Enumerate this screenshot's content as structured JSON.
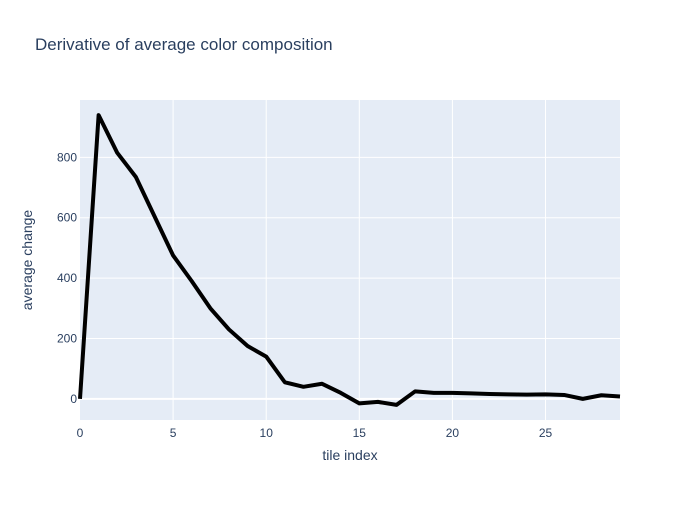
{
  "chart_data": {
    "type": "line",
    "title": "Derivative of average color composition",
    "xlabel": "tile index",
    "ylabel": "average change",
    "xlim": [
      0,
      29
    ],
    "ylim": [
      -70,
      990
    ],
    "xticks": [
      0,
      5,
      10,
      15,
      20,
      25
    ],
    "yticks": [
      0,
      200,
      400,
      600,
      800
    ],
    "grid": true,
    "colors": {
      "plot_bg": "#e5ecf6",
      "grid": "#ffffff",
      "line": "#000000",
      "text": "#2a3f5f"
    },
    "series": [
      {
        "x": [
          0,
          1,
          2,
          3,
          4,
          5,
          6,
          7,
          8,
          9,
          10,
          11,
          12,
          13,
          14,
          15,
          16,
          17,
          18,
          19,
          20,
          21,
          22,
          23,
          24,
          25,
          26,
          27,
          28,
          29
        ],
        "values": [
          0,
          940,
          815,
          735,
          605,
          475,
          390,
          300,
          230,
          175,
          140,
          55,
          40,
          50,
          20,
          -15,
          -10,
          -20,
          25,
          20,
          20,
          18,
          16,
          15,
          14,
          15,
          13,
          0,
          12,
          8
        ]
      }
    ]
  }
}
